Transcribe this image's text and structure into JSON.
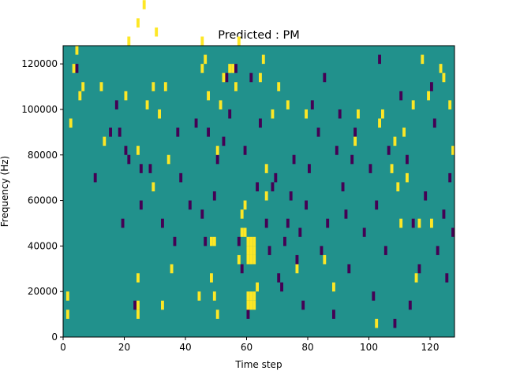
{
  "chart_data": {
    "type": "heatmap",
    "title": "Predicted : PM",
    "xlabel": "Time step",
    "ylabel": "Frequency (Hz)",
    "xlim": [
      0,
      128
    ],
    "ylim": [
      0,
      128000
    ],
    "x_ticks": [
      0,
      20,
      40,
      60,
      80,
      100,
      120
    ],
    "y_ticks": [
      0,
      20000,
      40000,
      60000,
      80000,
      100000,
      120000
    ],
    "x_tick_labels": [
      "0",
      "20",
      "40",
      "60",
      "80",
      "100",
      "120"
    ],
    "y_tick_labels": [
      "0",
      "20000",
      "40000",
      "60000",
      "80000",
      "100000",
      "120000"
    ],
    "grid": false,
    "colormap": "viridis",
    "colors": {
      "background": "#21918c",
      "low": "#440154",
      "high": "#fde725"
    },
    "cell_height_hz": 4000,
    "yellow_cells": [
      [
        1,
        2
      ],
      [
        1,
        4
      ],
      [
        2,
        23
      ],
      [
        3,
        29
      ],
      [
        4,
        31
      ],
      [
        5,
        26
      ],
      [
        6,
        27
      ],
      [
        12,
        27
      ],
      [
        13,
        21
      ],
      [
        20,
        26
      ],
      [
        21,
        32
      ],
      [
        24,
        34
      ],
      [
        24,
        20
      ],
      [
        24,
        6
      ],
      [
        24,
        3
      ],
      [
        24,
        2
      ],
      [
        26,
        36
      ],
      [
        27,
        25
      ],
      [
        29,
        27
      ],
      [
        29,
        16
      ],
      [
        30,
        33
      ],
      [
        31,
        24
      ],
      [
        32,
        3
      ],
      [
        33,
        27
      ],
      [
        34,
        19
      ],
      [
        35,
        7
      ],
      [
        44,
        4
      ],
      [
        45,
        32
      ],
      [
        45,
        29
      ],
      [
        46,
        30
      ],
      [
        47,
        26
      ],
      [
        48,
        10
      ],
      [
        48,
        6
      ],
      [
        49,
        10
      ],
      [
        49,
        4
      ],
      [
        50,
        2
      ],
      [
        50,
        20
      ],
      [
        51,
        25
      ],
      [
        52,
        28
      ],
      [
        54,
        29
      ],
      [
        55,
        29
      ],
      [
        56,
        27
      ],
      [
        57,
        32
      ],
      [
        57,
        8
      ],
      [
        58,
        13
      ],
      [
        58,
        11
      ],
      [
        59,
        11
      ],
      [
        59,
        14
      ],
      [
        60,
        3
      ],
      [
        60,
        4
      ],
      [
        60,
        8
      ],
      [
        60,
        9
      ],
      [
        60,
        10
      ],
      [
        61,
        3
      ],
      [
        61,
        4
      ],
      [
        61,
        8
      ],
      [
        61,
        9
      ],
      [
        61,
        10
      ],
      [
        62,
        3
      ],
      [
        62,
        4
      ],
      [
        62,
        8
      ],
      [
        62,
        9
      ],
      [
        62,
        10
      ],
      [
        63,
        5
      ],
      [
        64,
        28
      ],
      [
        65,
        30
      ],
      [
        66,
        15
      ],
      [
        66,
        18
      ],
      [
        68,
        24
      ],
      [
        70,
        27
      ],
      [
        73,
        25
      ],
      [
        76,
        7
      ],
      [
        79,
        24
      ],
      [
        85,
        8
      ],
      [
        88,
        5
      ],
      [
        95,
        21
      ],
      [
        96,
        24
      ],
      [
        102,
        1
      ],
      [
        103,
        23
      ],
      [
        104,
        24
      ],
      [
        107,
        18
      ],
      [
        108,
        21
      ],
      [
        109,
        16
      ],
      [
        110,
        12
      ],
      [
        111,
        22
      ],
      [
        112,
        17
      ],
      [
        114,
        25
      ],
      [
        115,
        6
      ],
      [
        116,
        12
      ],
      [
        117,
        30
      ],
      [
        119,
        26
      ],
      [
        120,
        12
      ],
      [
        123,
        29
      ],
      [
        124,
        28
      ],
      [
        126,
        25
      ],
      [
        127,
        20
      ]
    ],
    "purple_cells": [
      [
        4,
        29
      ],
      [
        10,
        17
      ],
      [
        15,
        22
      ],
      [
        17,
        25
      ],
      [
        18,
        22
      ],
      [
        19,
        12
      ],
      [
        20,
        20
      ],
      [
        21,
        19
      ],
      [
        23,
        3
      ],
      [
        25,
        18
      ],
      [
        25,
        14
      ],
      [
        28,
        18
      ],
      [
        32,
        12
      ],
      [
        36,
        10
      ],
      [
        37,
        22
      ],
      [
        38,
        17
      ],
      [
        41,
        14
      ],
      [
        43,
        23
      ],
      [
        45,
        13
      ],
      [
        46,
        10
      ],
      [
        47,
        22
      ],
      [
        49,
        15
      ],
      [
        50,
        19
      ],
      [
        52,
        21
      ],
      [
        53,
        28
      ],
      [
        54,
        24
      ],
      [
        56,
        29
      ],
      [
        57,
        10
      ],
      [
        58,
        7
      ],
      [
        59,
        20
      ],
      [
        60,
        2
      ],
      [
        61,
        28
      ],
      [
        63,
        16
      ],
      [
        64,
        23
      ],
      [
        66,
        12
      ],
      [
        67,
        9
      ],
      [
        68,
        16
      ],
      [
        69,
        17
      ],
      [
        70,
        6
      ],
      [
        71,
        5
      ],
      [
        72,
        10
      ],
      [
        73,
        12
      ],
      [
        74,
        15
      ],
      [
        75,
        19
      ],
      [
        76,
        8
      ],
      [
        77,
        11
      ],
      [
        78,
        3
      ],
      [
        79,
        14
      ],
      [
        80,
        18
      ],
      [
        81,
        25
      ],
      [
        83,
        22
      ],
      [
        84,
        9
      ],
      [
        85,
        28
      ],
      [
        86,
        12
      ],
      [
        88,
        2
      ],
      [
        89,
        20
      ],
      [
        90,
        24
      ],
      [
        91,
        16
      ],
      [
        92,
        13
      ],
      [
        93,
        7
      ],
      [
        94,
        19
      ],
      [
        95,
        22
      ],
      [
        98,
        11
      ],
      [
        100,
        18
      ],
      [
        101,
        4
      ],
      [
        102,
        14
      ],
      [
        103,
        30
      ],
      [
        105,
        9
      ],
      [
        106,
        20
      ],
      [
        108,
        1
      ],
      [
        110,
        26
      ],
      [
        112,
        19
      ],
      [
        113,
        3
      ],
      [
        114,
        12
      ],
      [
        116,
        7
      ],
      [
        118,
        15
      ],
      [
        120,
        27
      ],
      [
        121,
        23
      ],
      [
        122,
        9
      ],
      [
        124,
        13
      ],
      [
        125,
        6
      ],
      [
        126,
        17
      ],
      [
        127,
        11
      ]
    ]
  }
}
